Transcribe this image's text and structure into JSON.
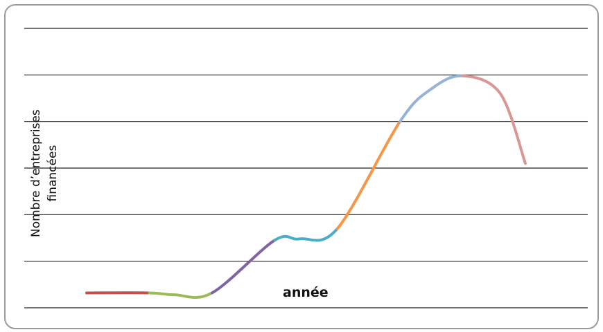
{
  "chart_data": {
    "type": "line",
    "title": "",
    "xlabel": "année",
    "ylabel_lines": [
      "Nombre d’entreprises",
      "financées"
    ],
    "ylim": [
      0,
      6
    ],
    "grid": true,
    "legend": "none",
    "segments": [
      {
        "color": "#c0504d",
        "points": [
          [
            0,
            0.32
          ],
          [
            1,
            0.32
          ]
        ]
      },
      {
        "color": "#9bbb59",
        "points": [
          [
            1,
            0.32
          ],
          [
            1.4,
            0.28
          ],
          [
            2,
            0.32
          ]
        ]
      },
      {
        "color": "#8064a2",
        "points": [
          [
            2,
            0.32
          ],
          [
            3,
            1.45
          ]
        ]
      },
      {
        "color": "#4bacc6",
        "points": [
          [
            3,
            1.45
          ],
          [
            3.4,
            1.48
          ],
          [
            4,
            1.7
          ]
        ]
      },
      {
        "color": "#f79646",
        "points": [
          [
            4,
            1.7
          ],
          [
            5,
            4.0
          ]
        ]
      },
      {
        "color": "#95b3d7",
        "points": [
          [
            5,
            4.0
          ],
          [
            5.5,
            4.7
          ],
          [
            6,
            4.98
          ]
        ]
      },
      {
        "color": "#d99694",
        "points": [
          [
            6,
            4.98
          ],
          [
            6.6,
            4.6
          ],
          [
            7,
            3.1
          ]
        ]
      }
    ]
  }
}
